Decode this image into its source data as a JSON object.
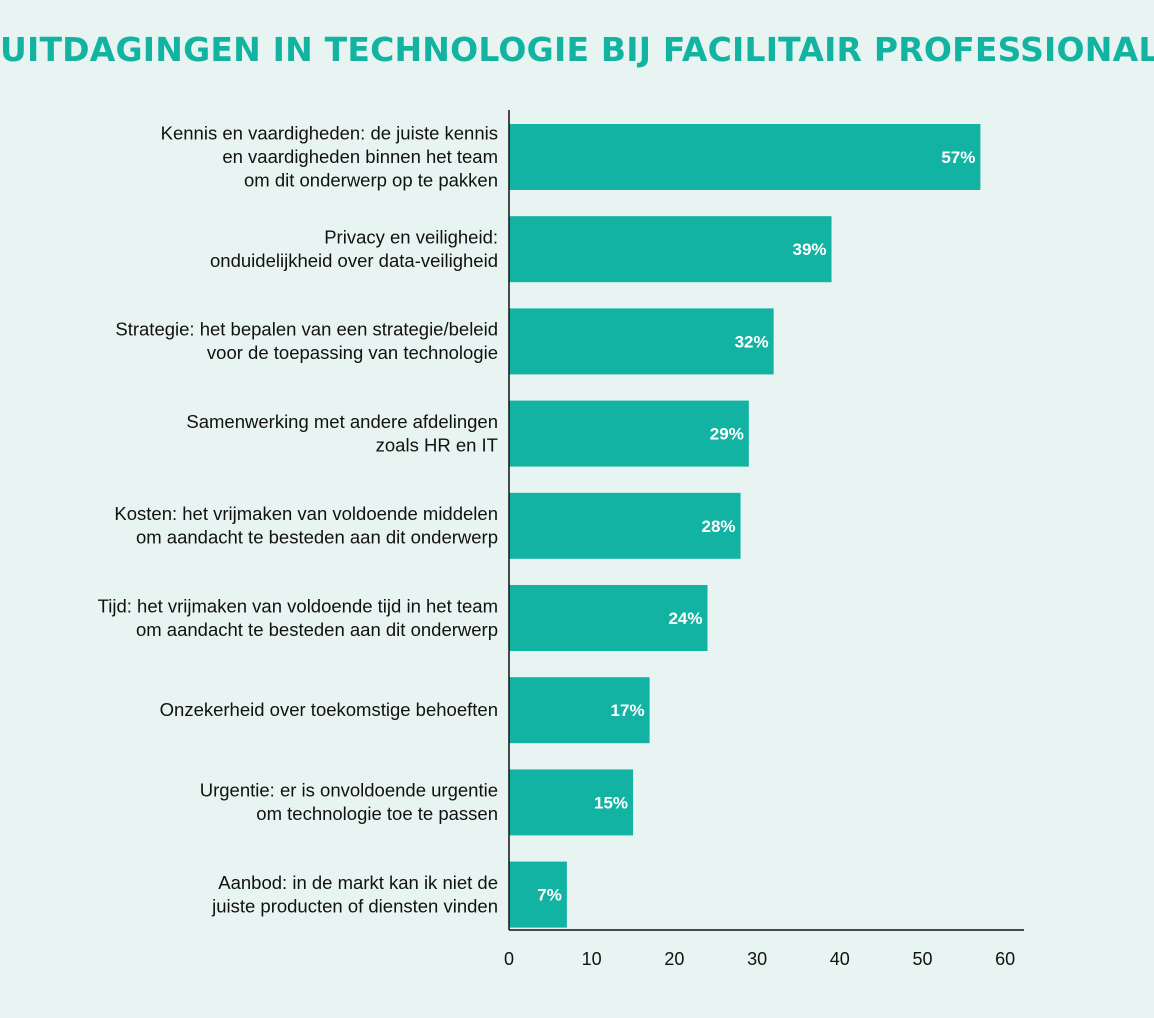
{
  "colors": {
    "bar": "#12b3a2",
    "title": "#13b3a1",
    "background": "#e8f4f1"
  },
  "chart_data": {
    "type": "bar",
    "orientation": "horizontal",
    "title": "UITDAGINGEN IN TECHNOLOGIE BIJ FACILITAIR PROFESSIONAL",
    "categories": [
      [
        "Kennis en vaardigheden: de juiste kennis",
        "en vaardigheden binnen het team",
        "om dit onderwerp op te pakken"
      ],
      [
        "Privacy en veiligheid:",
        "onduidelijkheid over data-veiligheid"
      ],
      [
        "Strategie: het bepalen van een  strategie/beleid",
        "voor de toepassing van technologie"
      ],
      [
        "Samenwerking met andere afdelingen",
        "zoals HR en IT"
      ],
      [
        "Kosten: het vrijmaken van voldoende middelen",
        "om aandacht te besteden aan dit onderwerp"
      ],
      [
        "Tijd: het vrijmaken van voldoende tijd in het team",
        "om aandacht te besteden aan dit onderwerp"
      ],
      [
        "Onzekerheid over toekomstige behoeften"
      ],
      [
        "Urgentie: er is onvoldoende urgentie",
        "om technologie toe te passen"
      ],
      [
        "Aanbod: in de markt kan ik niet de",
        "juiste producten of diensten vinden"
      ]
    ],
    "values": [
      57,
      39,
      32,
      29,
      28,
      24,
      17,
      15,
      7
    ],
    "value_labels": [
      "57%",
      "39%",
      "32%",
      "29%",
      "28%",
      "24%",
      "17%",
      "15%",
      "7%"
    ],
    "xlim": [
      0,
      62
    ],
    "xticks": [
      0,
      10,
      20,
      30,
      40,
      50,
      60
    ],
    "xlabel": "",
    "ylabel": "",
    "grid": false,
    "legend": "none"
  }
}
